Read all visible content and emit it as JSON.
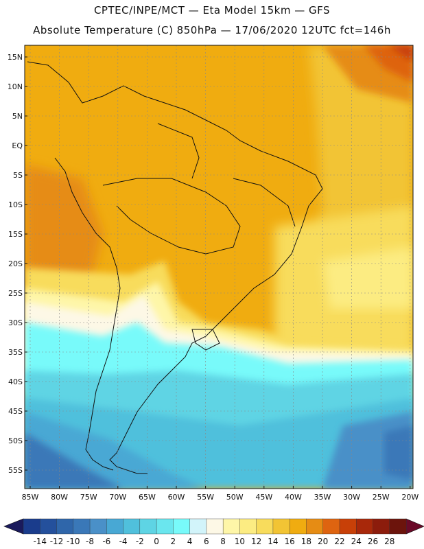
{
  "header": {
    "title_line1": "CPTEC/INPE/MCT —  Eta Model 15km — GFS",
    "title_line2": "Absolute Temperature (C) 850hPa — 17/06/2020 12UTC fct=146h"
  },
  "axes": {
    "lat_labels": [
      "15N",
      "10N",
      "5N",
      "EQ",
      "5S",
      "10S",
      "15S",
      "20S",
      "25S",
      "30S",
      "35S",
      "40S",
      "45S",
      "50S",
      "55S"
    ],
    "lon_labels": [
      "85W",
      "80W",
      "75W",
      "70W",
      "65W",
      "60W",
      "55W",
      "50W",
      "45W",
      "40W",
      "35W",
      "30W",
      "25W",
      "20W"
    ]
  },
  "colorbar": {
    "labels": [
      "-14",
      "-12",
      "-10",
      "-8",
      "-6",
      "-4",
      "-2",
      "0",
      "2",
      "4",
      "6",
      "8",
      "10",
      "12",
      "14",
      "16",
      "18",
      "20",
      "22",
      "24",
      "26",
      "28"
    ],
    "colors": [
      "#1a3c8c",
      "#24509c",
      "#2f66aa",
      "#3a78b8",
      "#4a90c8",
      "#48a8d4",
      "#50c0dc",
      "#5ed4e4",
      "#6ae6ee",
      "#78fafa",
      "#d2f4fa",
      "#fdf8e6",
      "#fef6a8",
      "#fcec82",
      "#f8dc5c",
      "#f2c434",
      "#f0ac10",
      "#e68c14",
      "#de6410",
      "#c84008",
      "#a8280a",
      "#8c1c0c",
      "#6c140c"
    ],
    "left_arrow_color": "#1a1a5c",
    "right_arrow_color": "#6a0a28"
  },
  "map_colors": {
    "ocean_gray_border": "#111111",
    "grid": "#888888"
  }
}
